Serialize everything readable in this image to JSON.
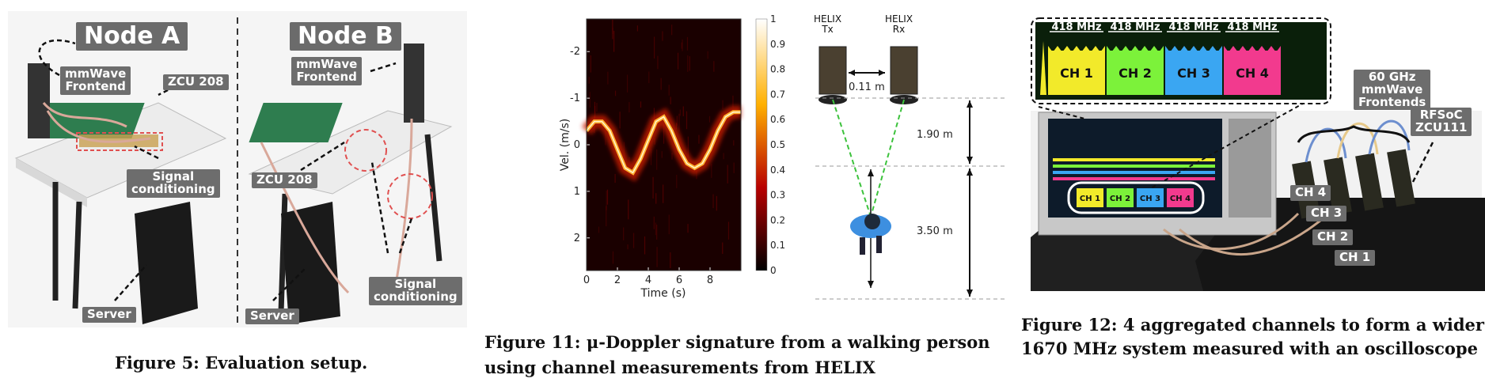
{
  "figure5": {
    "node_a": "Node A",
    "node_b": "Node B",
    "a_mmwave": "mmWave\nFrontend",
    "a_zcu": "ZCU 208",
    "a_signal": "Signal\nconditioning",
    "a_server": "Server",
    "b_mmwave": "mmWave\nFrontend",
    "b_zcu": "ZCU 208",
    "b_signal": "Signal\nconditioning",
    "b_server": "Server",
    "caption": "Figure 5: Evaluation setup."
  },
  "figure11": {
    "helix_tx": "HELIX\nTx",
    "helix_rx": "HELIX\nRx",
    "dist_tx_rx": "0.11 m",
    "dist_1": "1.90 m",
    "dist_2": "3.50 m",
    "caption_line1": "Figure 11: μ-Doppler signature from a walking person",
    "caption_line2": "using channel measurements from HELIX"
  },
  "figure12": {
    "bandwidth_labels": [
      "418 MHz",
      "418 MHz",
      "418 MHz",
      "418 MHz"
    ],
    "channels": [
      "CH 1",
      "CH 2",
      "CH 3",
      "CH 4"
    ],
    "channel_colors": [
      "#f2ea2a",
      "#7cf23a",
      "#3aa6f2",
      "#f23a8e"
    ],
    "scope_channels": [
      "CH 1",
      "CH 2",
      "CH 3",
      "CH 4"
    ],
    "tag_60ghz": "60 GHz\nmmWave\nFrontends",
    "tag_rfsoc": "RFSoC\nZCU111",
    "board_channels": [
      "CH 4",
      "CH 3",
      "CH 2",
      "CH 1"
    ],
    "caption_line1": "Figure 12: 4 aggregated channels to form a wider",
    "caption_line2": "1670 MHz system measured with an oscilloscope"
  },
  "chart_data": {
    "type": "heatmap",
    "title": "",
    "xlabel": "Time (s)",
    "ylabel": "Vel. (m/s)",
    "x_ticks": [
      "0",
      "2",
      "4",
      "6",
      "8"
    ],
    "y_ticks": [
      "-2",
      "-1",
      "0",
      "1",
      "2"
    ],
    "xlim": [
      0,
      10
    ],
    "ylim": [
      -2.7,
      2.7
    ],
    "y_inverted": true,
    "colorbar_ticks": [
      "0",
      "0.1",
      "0.2",
      "0.3",
      "0.4",
      "0.5",
      "0.6",
      "0.7",
      "0.8",
      "0.9",
      "1"
    ],
    "colormap": "hot",
    "signature_curve": {
      "time": [
        0,
        0.5,
        1,
        1.5,
        2,
        2.5,
        3,
        3.5,
        4,
        4.5,
        5,
        5.5,
        6,
        6.5,
        7,
        7.5,
        8,
        8.5,
        9,
        9.5,
        10
      ],
      "velocity": [
        -0.3,
        -0.5,
        -0.5,
        -0.3,
        0.1,
        0.5,
        0.6,
        0.3,
        -0.1,
        -0.5,
        -0.6,
        -0.3,
        0.1,
        0.4,
        0.5,
        0.4,
        0.1,
        -0.3,
        -0.6,
        -0.7,
        -0.7
      ]
    }
  }
}
